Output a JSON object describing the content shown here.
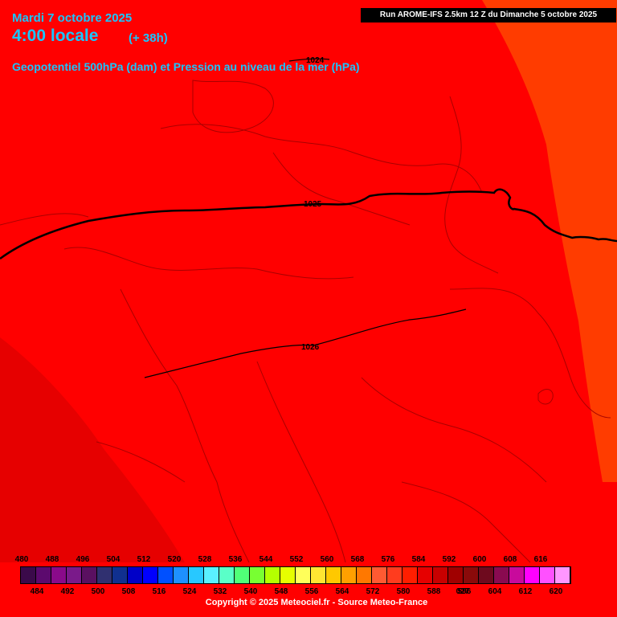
{
  "header": {
    "date": "Mardi 7 octobre 2025",
    "time": "4:00 locale",
    "lead": "(+ 38h)",
    "description": "Geopotentiel 500hPa (dam) et Pression au niveau de la mer (hPa)",
    "run": "Run AROME-IFS 2.5km 12 Z du Dimanche 5 octobre 2025"
  },
  "isobars": [
    {
      "value": "1024"
    },
    {
      "value": "1025"
    },
    {
      "value": "1026"
    }
  ],
  "legend": {
    "levels": [
      480,
      484,
      488,
      492,
      496,
      500,
      504,
      508,
      512,
      516,
      520,
      524,
      528,
      532,
      536,
      540,
      544,
      548,
      552,
      556,
      560,
      564,
      568,
      572,
      576,
      580,
      584,
      588,
      592,
      596,
      600,
      604,
      608,
      612,
      616,
      620
    ],
    "top_labels": [
      "480",
      "488",
      "496",
      "504",
      "512",
      "520",
      "528",
      "536",
      "544",
      "552",
      "560",
      "568",
      "576",
      "584",
      "592",
      "600",
      "608",
      "616"
    ],
    "bottom_labels": [
      "484",
      "492",
      "500",
      "508",
      "516",
      "524",
      "532",
      "540",
      "548",
      "556",
      "564",
      "572",
      "580",
      "588",
      "596",
      "604",
      "612",
      "620"
    ],
    "bottom_overlay": "027",
    "colors": [
      "#3b0a4a",
      "#5c0a6e",
      "#8a0a8a",
      "#7a1a8a",
      "#5a1060",
      "#303070",
      "#10308f",
      "#0000c8",
      "#0000ff",
      "#0050ff",
      "#1e90ff",
      "#28c8ff",
      "#5af0ff",
      "#5affc8",
      "#50ff78",
      "#78ff32",
      "#b4ff00",
      "#e6ff00",
      "#ffff5a",
      "#ffe632",
      "#ffc800",
      "#ffa000",
      "#ff7800",
      "#ff5a32",
      "#ff3c1e",
      "#ff1e00",
      "#e60000",
      "#c80000",
      "#a00000",
      "#8a0a0a",
      "#6e0a1e",
      "#8a0a50",
      "#c80a9c",
      "#ff00ff",
      "#ff50ff",
      "#ff96ff"
    ]
  },
  "map_colors": {
    "main": "#ff0000",
    "west": "#e60000",
    "east": "#ff3c00",
    "borders": "#a00000",
    "isobar": "#000000"
  },
  "copyright": "Copyright © 2025 Meteociel.fr - Source Meteo-France"
}
